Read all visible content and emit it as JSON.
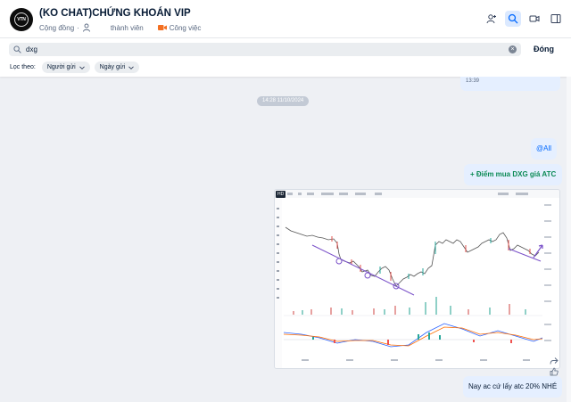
{
  "header": {
    "title": "(KO CHAT)CHỨNG KHOÁN VIP",
    "community": "Cộng đồng",
    "separator": "·",
    "members": "thành viên",
    "work": "Công việc"
  },
  "search": {
    "value": "dxg",
    "close_label": "Đóng",
    "filter_label": "Lọc theo:",
    "filters": [
      "Người gửi",
      "Ngày gửi"
    ]
  },
  "messages": {
    "prev_time": "13:39",
    "date_divider": "14:28 11/10/2024",
    "all_mention": "@All",
    "buy_note": "+ Điểm mua DXG giá ATC",
    "last_note": "Nay ac cứ lấy atc 20% NHÉ"
  },
  "icons": {
    "avatar": "avatar-logo",
    "person": "person-icon",
    "video": "video-icon",
    "search": "search-icon",
    "clear": "clear-icon",
    "chevron": "chevron-down-icon",
    "header_actions": [
      "add-member-icon",
      "search-icon",
      "video-call-icon",
      "sidebar-toggle-icon"
    ],
    "image_actions": [
      "share-icon",
      "like-icon"
    ]
  },
  "colors": {
    "accent": "#0068ff",
    "buy_text": "#0b8a55",
    "bubble_bg": "#e5efff"
  }
}
